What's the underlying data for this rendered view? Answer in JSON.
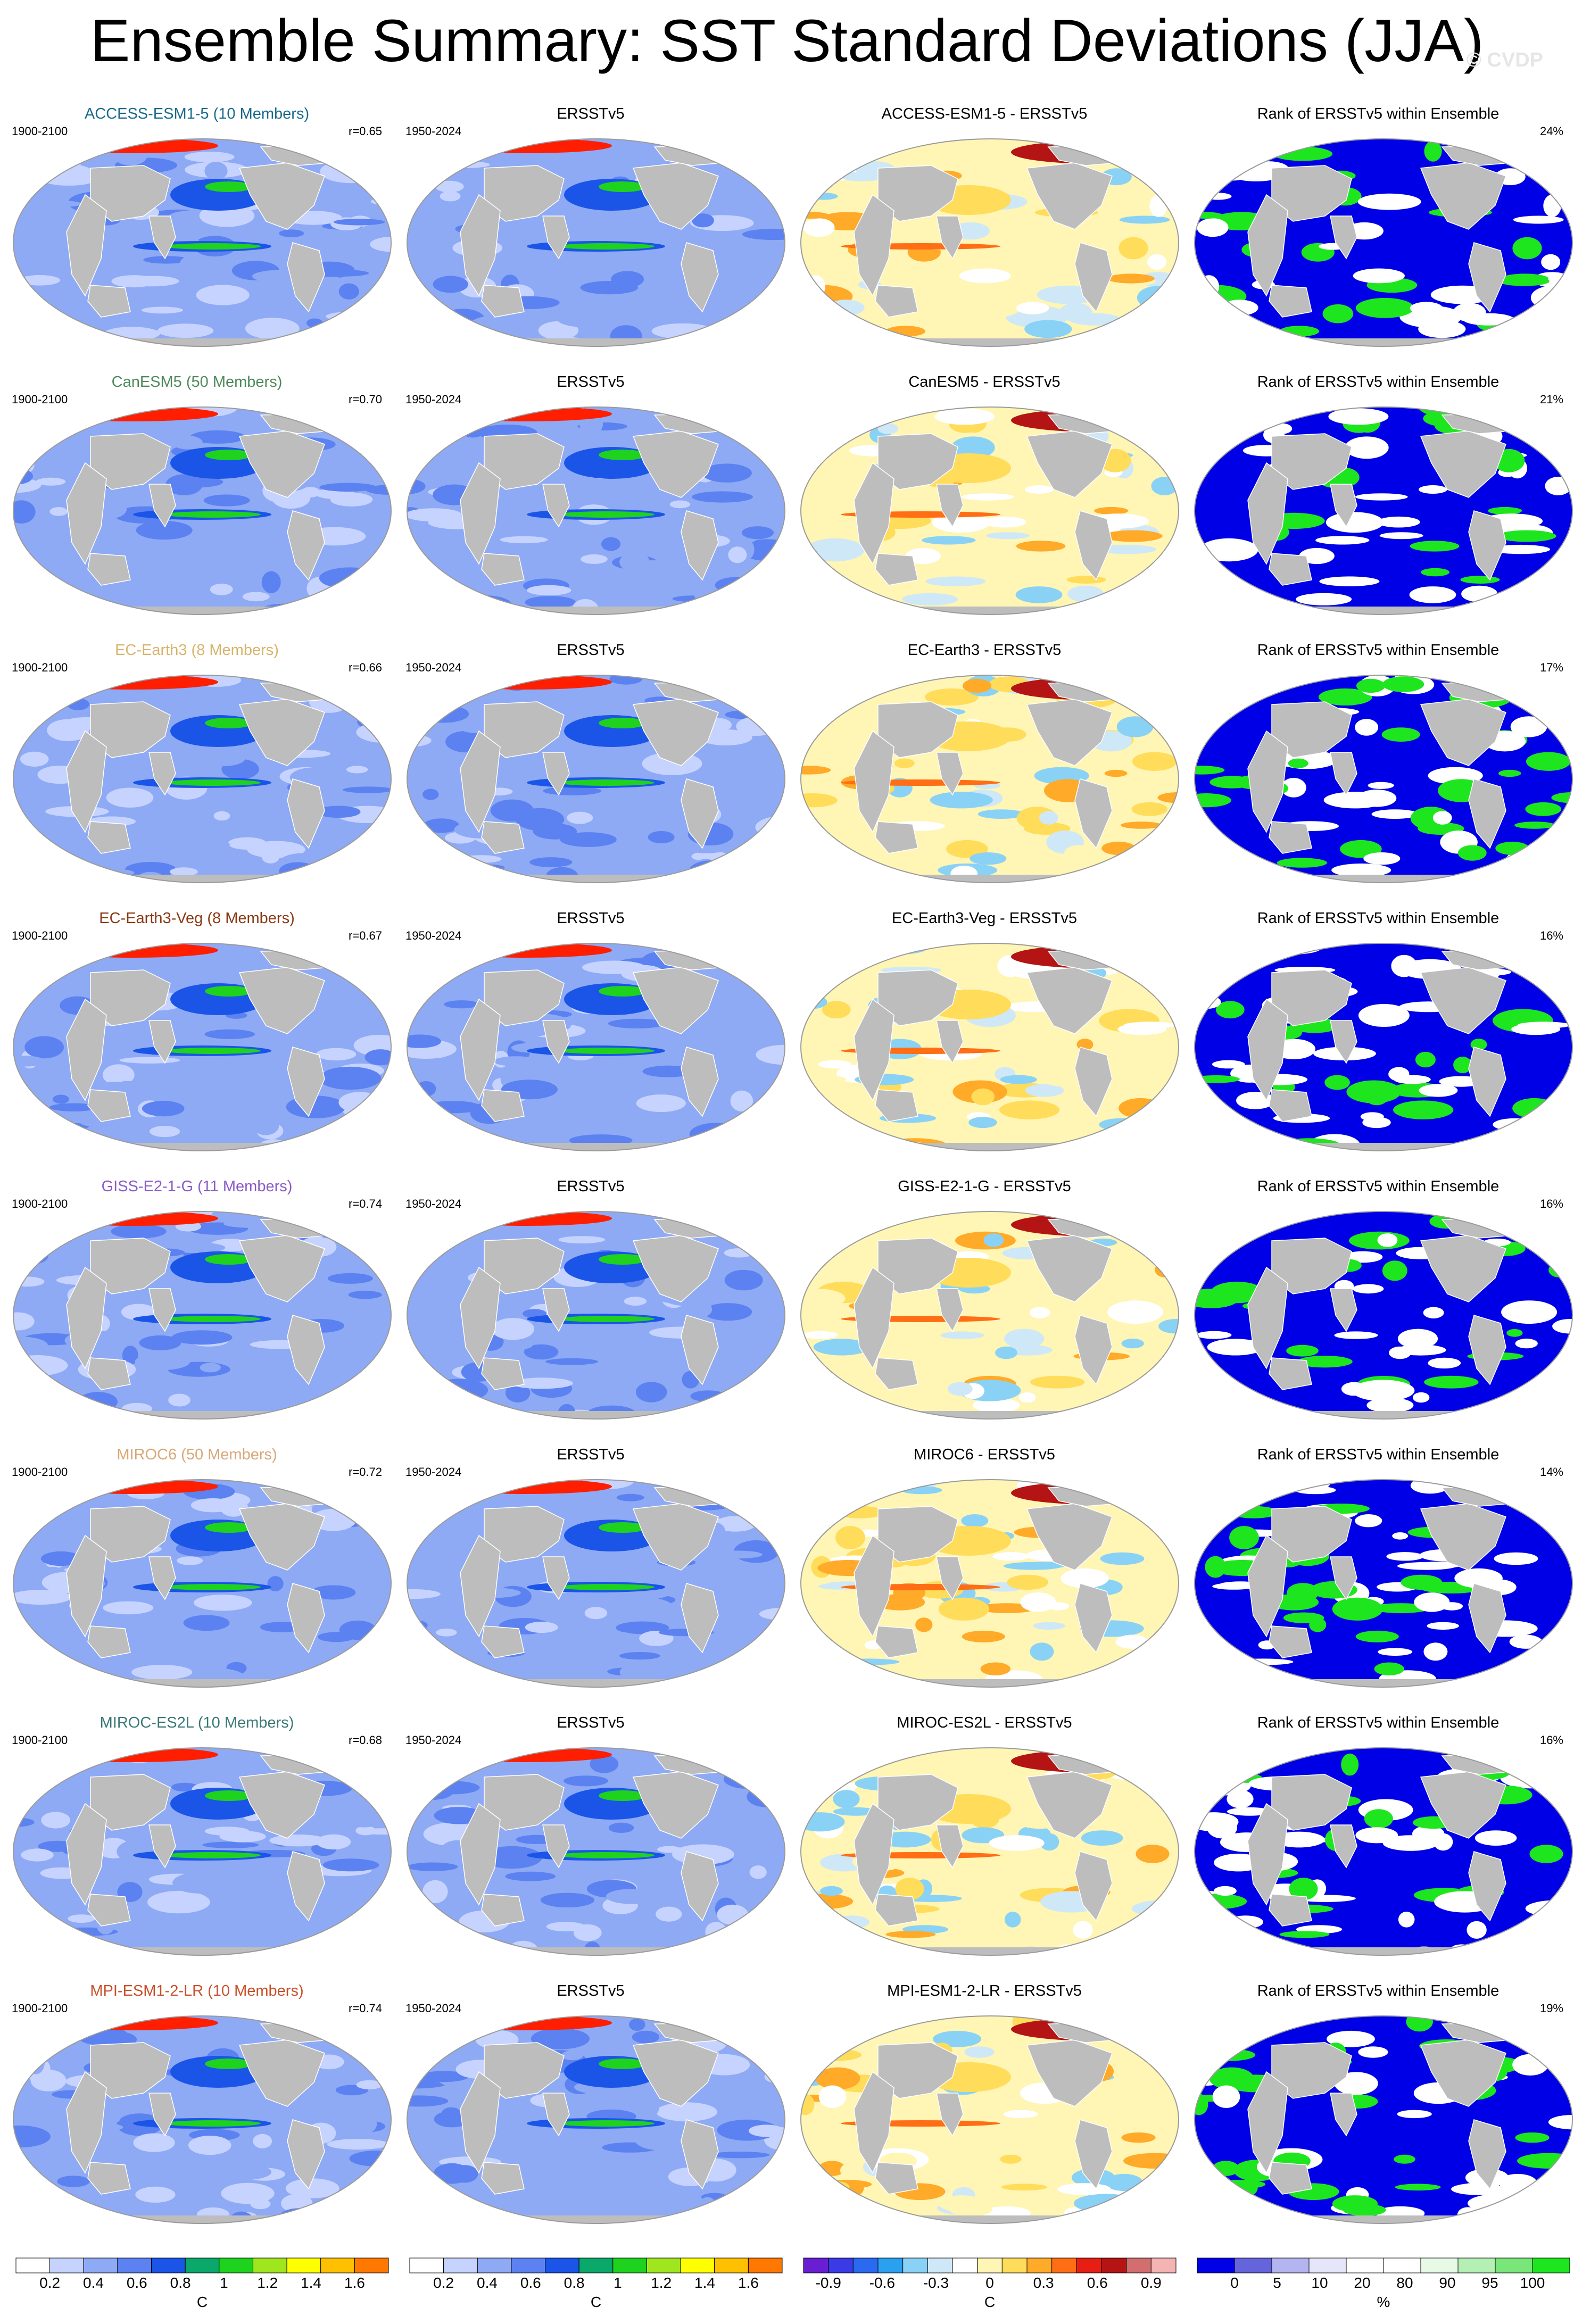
{
  "title": "Ensemble Summary: SST Standard Deviations (JJA)",
  "watermark": "© CVDP",
  "columns": [
    {
      "key": "ensemble",
      "title_suffix": " Members)"
    },
    {
      "key": "obs",
      "title": "ERSSTv5",
      "left_label": "1950-2024"
    },
    {
      "key": "diff",
      "title_suffix": " - ERSSTv5"
    },
    {
      "key": "rank",
      "title": "Rank of ERSSTv5 within Ensemble"
    }
  ],
  "rows": [
    {
      "model": "ACCESS-ESM1-5",
      "ensemble_title": "ACCESS-ESM1-5 (10 Members)",
      "title_color": "#1a6a8c",
      "period": "1900-2100",
      "r": "r=0.65",
      "obs_title": "ERSSTv5",
      "obs_period": "1950-2024",
      "diff_title": "ACCESS-ESM1-5 - ERSSTv5",
      "rank_title": "Rank of ERSSTv5 within Ensemble",
      "rank_pct": "24%"
    },
    {
      "model": "CanESM5",
      "ensemble_title": "CanESM5 (50 Members)",
      "title_color": "#4e8a5a",
      "period": "1900-2100",
      "r": "r=0.70",
      "obs_title": "ERSSTv5",
      "obs_period": "1950-2024",
      "diff_title": "CanESM5 - ERSSTv5",
      "rank_title": "Rank of ERSSTv5 within Ensemble",
      "rank_pct": "21%"
    },
    {
      "model": "EC-Earth3",
      "ensemble_title": "EC-Earth3 (8 Members)",
      "title_color": "#d8b46a",
      "period": "1900-2100",
      "r": "r=0.66",
      "obs_title": "ERSSTv5",
      "obs_period": "1950-2024",
      "diff_title": "EC-Earth3 - ERSSTv5",
      "rank_title": "Rank of ERSSTv5 within Ensemble",
      "rank_pct": "17%"
    },
    {
      "model": "EC-Earth3-Veg",
      "ensemble_title": "EC-Earth3-Veg (8 Members)",
      "title_color": "#8a3a14",
      "period": "1900-2100",
      "r": "r=0.67",
      "obs_title": "ERSSTv5",
      "obs_period": "1950-2024",
      "diff_title": "EC-Earth3-Veg - ERSSTv5",
      "rank_title": "Rank of ERSSTv5 within Ensemble",
      "rank_pct": "16%"
    },
    {
      "model": "GISS-E2-1-G",
      "ensemble_title": "GISS-E2-1-G (11 Members)",
      "title_color": "#8a5ac8",
      "period": "1900-2100",
      "r": "r=0.74",
      "obs_title": "ERSSTv5",
      "obs_period": "1950-2024",
      "diff_title": "GISS-E2-1-G - ERSSTv5",
      "rank_title": "Rank of ERSSTv5 within Ensemble",
      "rank_pct": "16%"
    },
    {
      "model": "MIROC6",
      "ensemble_title": "MIROC6 (50 Members)",
      "title_color": "#d8a878",
      "period": "1900-2100",
      "r": "r=0.72",
      "obs_title": "ERSSTv5",
      "obs_period": "1950-2024",
      "diff_title": "MIROC6 - ERSSTv5",
      "rank_title": "Rank of ERSSTv5 within Ensemble",
      "rank_pct": "14%"
    },
    {
      "model": "MIROC-ES2L",
      "ensemble_title": "MIROC-ES2L (10 Members)",
      "title_color": "#3a7878",
      "period": "1900-2100",
      "r": "r=0.68",
      "obs_title": "ERSSTv5",
      "obs_period": "1950-2024",
      "diff_title": "MIROC-ES2L - ERSSTv5",
      "rank_title": "Rank of ERSSTv5 within Ensemble",
      "rank_pct": "16%"
    },
    {
      "model": "MPI-ESM1-2-LR",
      "ensemble_title": "MPI-ESM1-2-LR (10 Members)",
      "title_color": "#c8502a",
      "period": "1900-2100",
      "r": "r=0.74",
      "obs_title": "ERSSTv5",
      "obs_period": "1950-2024",
      "diff_title": "MPI-ESM1-2-LR - ERSSTv5",
      "rank_title": "Rank of ERSSTv5 within Ensemble",
      "rank_pct": "19%"
    }
  ],
  "colors": {
    "land": "#bdbdbd",
    "ocean_outline": "#9a9a9a",
    "sd_scale": [
      "#ffffff",
      "#c6d3ff",
      "#8eaaf5",
      "#5b82f0",
      "#1a55e8",
      "#0aa86a",
      "#1ed21e",
      "#a0e61e",
      "#ffff00",
      "#ffc000",
      "#ff7800",
      "#ff1e00"
    ],
    "diff_scale": [
      "#6a1ed2",
      "#3a3ae6",
      "#2a6af0",
      "#2aa0f0",
      "#8ad2f5",
      "#cfe8f8",
      "#ffffff",
      "#fff5b4",
      "#ffdc5a",
      "#ffaa28",
      "#ff6e14",
      "#e61e14",
      "#b41414",
      "#d26e6e",
      "#f5b4b4"
    ],
    "rank_scale": [
      "#0000e6",
      "#6464dc",
      "#b4b4f0",
      "#e6e6fa",
      "#ffffff",
      "#ffffff",
      "#e6fae6",
      "#b4f0b4",
      "#78e678",
      "#1ee61e"
    ]
  },
  "legends": [
    {
      "label_bottom": "C",
      "ticks": [
        "0.2",
        "0.4",
        "0.6",
        "0.8",
        "1",
        "1.2",
        "1.4",
        "1.6"
      ]
    },
    {
      "label_bottom": "C",
      "ticks": [
        "0.2",
        "0.4",
        "0.6",
        "0.8",
        "1",
        "1.2",
        "1.4",
        "1.6"
      ]
    },
    {
      "label_bottom": "C",
      "ticks": [
        "-0.9",
        "-0.6",
        "-0.3",
        "0",
        "0.3",
        "0.6",
        "0.9"
      ]
    },
    {
      "label_bottom": "%",
      "ticks": [
        "0",
        "5",
        "10",
        "20",
        "80",
        "90",
        "95",
        "100"
      ]
    }
  ]
}
